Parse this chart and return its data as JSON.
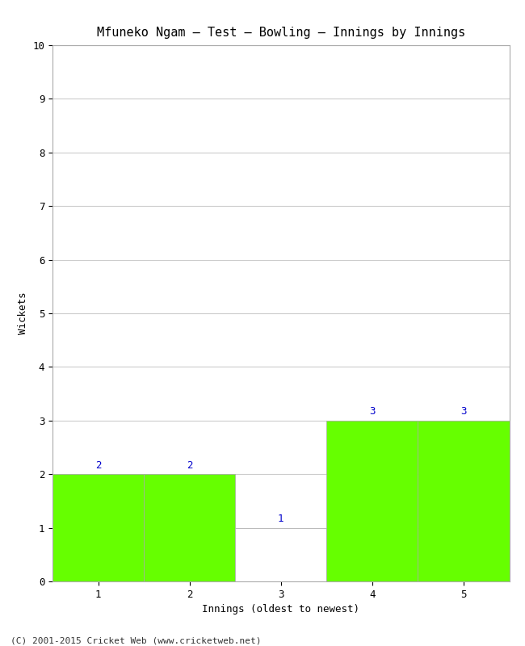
{
  "title": "Mfuneko Ngam – Test – Bowling – Innings by Innings",
  "xlabel": "Innings (oldest to newest)",
  "ylabel": "Wickets",
  "categories": [
    1,
    2,
    3,
    4,
    5
  ],
  "values": [
    2,
    2,
    1,
    3,
    3
  ],
  "bar_colors": [
    "#66ff00",
    "#66ff00",
    "#ffffff",
    "#66ff00",
    "#66ff00"
  ],
  "bar_edgecolor": "#aaaaaa",
  "ylim": [
    0,
    10
  ],
  "yticks": [
    0,
    1,
    2,
    3,
    4,
    5,
    6,
    7,
    8,
    9,
    10
  ],
  "xticks": [
    1,
    2,
    3,
    4,
    5
  ],
  "title_fontsize": 11,
  "axis_label_fontsize": 9,
  "tick_fontsize": 9,
  "label_color": "#0000cc",
  "label_fontsize": 9,
  "footer": "(C) 2001-2015 Cricket Web (www.cricketweb.net)",
  "footer_fontsize": 8,
  "background_color": "#ffffff",
  "grid_color": "#cccccc",
  "bar_width": 1.0
}
